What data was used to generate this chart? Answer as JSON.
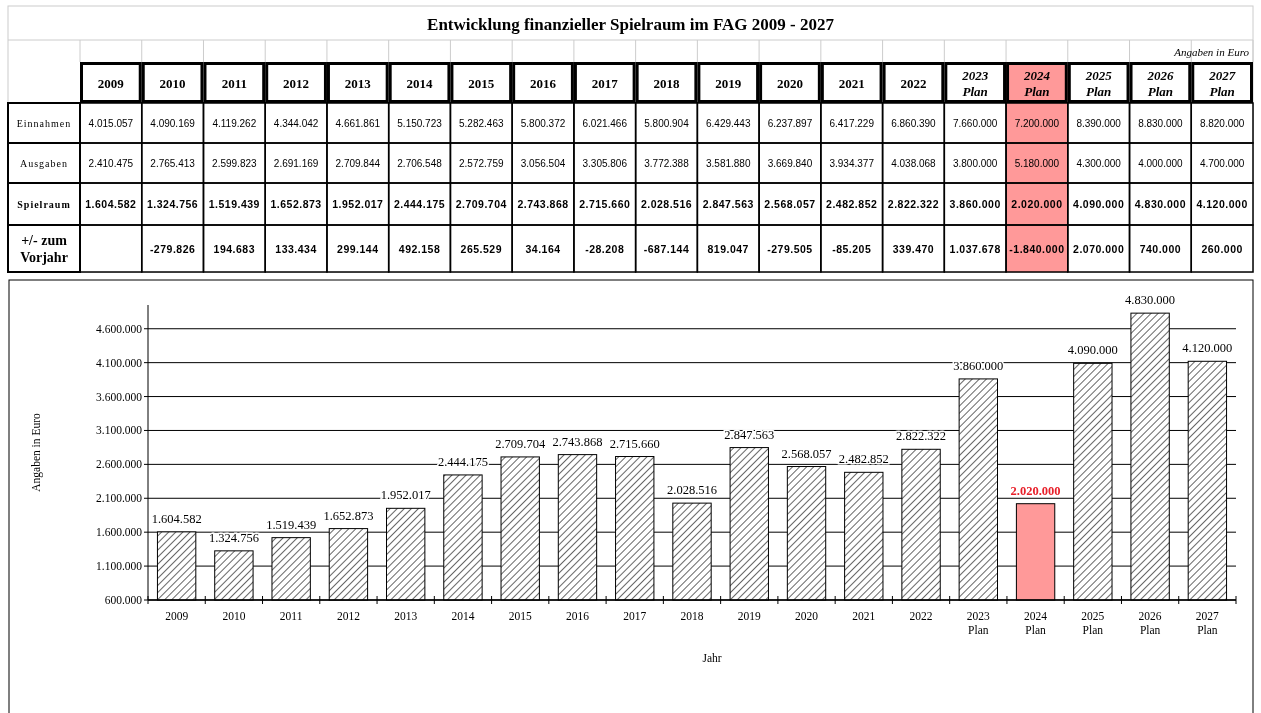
{
  "chart_data": [
    {
      "type": "heatmap",
      "title": "Entwicklung finanzieller Spielraum im FAG 2009 - 2027",
      "annotations": [
        "Angaben in Euro"
      ],
      "categories": [
        "2009",
        "2010",
        "2011",
        "2012",
        "2013",
        "2014",
        "2015",
        "2016",
        "2017",
        "2018",
        "2019",
        "2020",
        "2021",
        "2022",
        "2023 Plan",
        "2024 Plan",
        "2025 Plan",
        "2026 Plan",
        "2027 Plan"
      ],
      "y_categories": [
        "Einnahmen",
        "Ausgaben",
        "Spielraum",
        "+/- zum Vorjahr"
      ],
      "cells": [
        [
          4015057,
          4090169,
          4119262,
          4344042,
          4661861,
          5150723,
          5282463,
          5800372,
          6021466,
          5800904,
          6429443,
          6237897,
          6417229,
          6860390,
          7660000,
          7200000,
          8390000,
          8830000,
          8820000
        ],
        [
          2410475,
          2765413,
          2599823,
          2691169,
          2709844,
          2706548,
          2572759,
          3056504,
          3305806,
          3772388,
          3581880,
          3669840,
          3934377,
          4038068,
          3800000,
          5180000,
          4300000,
          4000000,
          4700000
        ],
        [
          1604582,
          1324756,
          1519439,
          1652873,
          1952017,
          2444175,
          2709704,
          2743868,
          2715660,
          2028516,
          2847563,
          2568057,
          2482852,
          2822322,
          3860000,
          2020000,
          4090000,
          4830000,
          4120000
        ],
        [
          null,
          -279826,
          194683,
          133434,
          299144,
          492158,
          265529,
          34164,
          -28208,
          -687144,
          819047,
          -279505,
          -85205,
          339470,
          1037678,
          -1840000,
          2070000,
          740000,
          260000
        ]
      ],
      "cell_labels": [
        [
          "4.015.057",
          "4.090.169",
          "4.119.262",
          "4.344.042",
          "4.661.861",
          "5.150.723",
          "5.282.463",
          "5.800.372",
          "6.021.466",
          "5.800.904",
          "6.429.443",
          "6.237.897",
          "6.417.229",
          "6.860.390",
          "7.660.000",
          "7.200.000",
          "8.390.000",
          "8.830.000",
          "8.820.000"
        ],
        [
          "2.410.475",
          "2.765.413",
          "2.599.823",
          "2.691.169",
          "2.709.844",
          "2.706.548",
          "2.572.759",
          "3.056.504",
          "3.305.806",
          "3.772.388",
          "3.581.880",
          "3.669.840",
          "3.934.377",
          "4.038.068",
          "3.800.000",
          "5.180.000",
          "4.300.000",
          "4.000.000",
          "4.700.000"
        ],
        [
          "1.604.582",
          "1.324.756",
          "1.519.439",
          "1.652.873",
          "1.952.017",
          "2.444.175",
          "2.709.704",
          "2.743.868",
          "2.715.660",
          "2.028.516",
          "2.847.563",
          "2.568.057",
          "2.482.852",
          "2.822.322",
          "3.860.000",
          "2.020.000",
          "4.090.000",
          "4.830.000",
          "4.120.000"
        ],
        [
          null,
          "-279.826",
          "194.683",
          "133.434",
          "299.144",
          "492.158",
          "265.529",
          "34.164",
          "-28.208",
          "-687.144",
          "819.047",
          "-279.505",
          "-85.205",
          "339.470",
          "1.037.678",
          "-1.840.000",
          "2.070.000",
          "740.000",
          "260.000"
        ]
      ],
      "colors": [
        "#ffffff",
        "#ffffff",
        "#ffffff",
        "#ffffff",
        "#ffffff",
        "#ffffff",
        "#ffffff",
        "#ffffff",
        "#ffffff",
        "#ffffff",
        "#ffffff",
        "#ffffff",
        "#ffffff",
        "#ffffff",
        "#ffffff",
        "#ff9999",
        "#ffffff",
        "#ffffff",
        "#ffffff"
      ]
    },
    {
      "type": "bar",
      "xlabel": "Jahr",
      "ylabel": "Angaben in Euro",
      "categories": [
        "2009",
        "2010",
        "2011",
        "2012",
        "2013",
        "2014",
        "2015",
        "2016",
        "2017",
        "2018",
        "2019",
        "2020",
        "2021",
        "2022",
        "2023 Plan",
        "2024 Plan",
        "2025 Plan",
        "2026 Plan",
        "2027 Plan"
      ],
      "values": [
        1604582,
        1324756,
        1519439,
        1652873,
        1952017,
        2444175,
        2709704,
        2743868,
        2715660,
        2028516,
        2847563,
        2568057,
        2482852,
        2822322,
        3860000,
        2020000,
        4090000,
        4830000,
        4120000
      ],
      "value_labels": [
        "1.604.582",
        "1.324.756",
        "1.519.439",
        "1.652.873",
        "1.952.017",
        "2.444.175",
        "2.709.704",
        "2.743.868",
        "2.715.660",
        "2.028.516",
        "2.847.563",
        "2.568.057",
        "2.482.852",
        "2.822.322",
        "3.860.000",
        "2.020.000",
        "4.090.000",
        "4.830.000",
        "4.120.000"
      ],
      "colors": [
        "#ffffff",
        "#ffffff",
        "#ffffff",
        "#ffffff",
        "#ffffff",
        "#ffffff",
        "#ffffff",
        "#ffffff",
        "#ffffff",
        "#ffffff",
        "#ffffff",
        "#ffffff",
        "#ffffff",
        "#ffffff",
        "#ffffff",
        "#ff9999",
        "#ffffff",
        "#ffffff",
        "#ffffff"
      ],
      "ylim": [
        600000,
        4950000
      ],
      "yticks": [
        {
          "value": 600000,
          "label": "600.000"
        },
        {
          "value": 1100000,
          "label": "1.100.000"
        },
        {
          "value": 1600000,
          "label": "1.600.000"
        },
        {
          "value": 2100000,
          "label": "2.100.000"
        },
        {
          "value": 2600000,
          "label": "2.600.000"
        },
        {
          "value": 3100000,
          "label": "3.100.000"
        },
        {
          "value": 3600000,
          "label": "3.600.000"
        },
        {
          "value": 4100000,
          "label": "4.100.000"
        },
        {
          "value": 4600000,
          "label": "4.600.000"
        }
      ],
      "grid": "y"
    }
  ]
}
